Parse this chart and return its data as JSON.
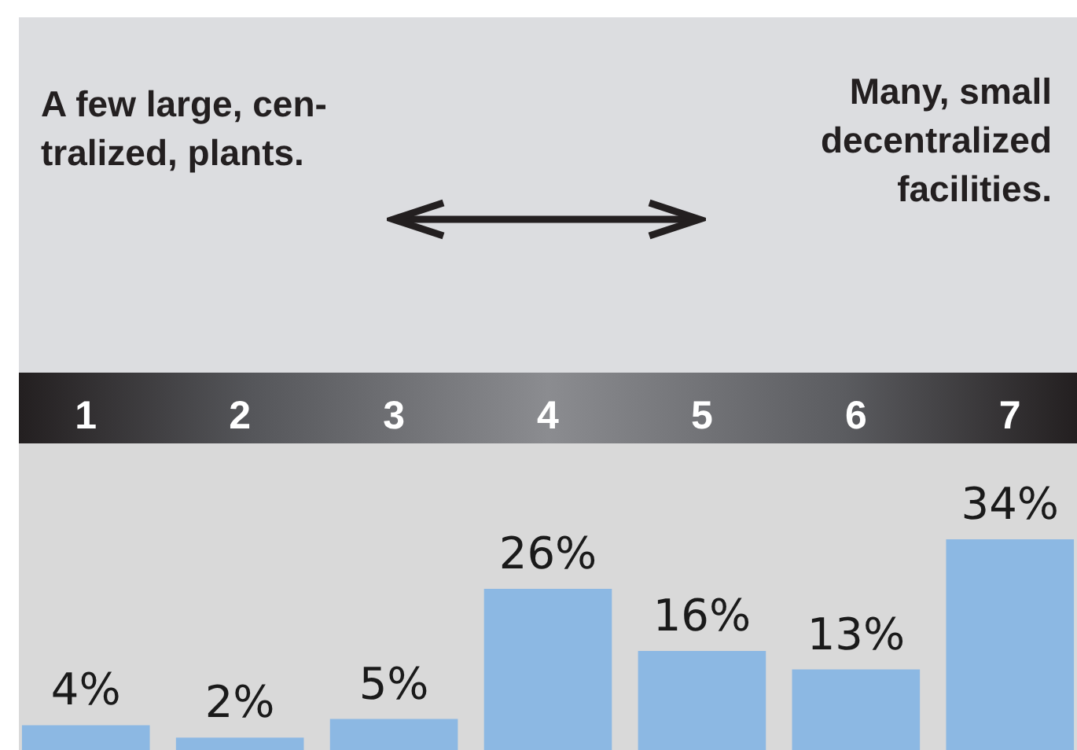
{
  "chart_data": {
    "type": "bar",
    "categories": [
      "1",
      "2",
      "3",
      "4",
      "5",
      "6",
      "7"
    ],
    "values": [
      4,
      2,
      5,
      26,
      16,
      13,
      34
    ],
    "color": "#8cb8e3",
    "value_labels": [
      "4%",
      "2%",
      "5%",
      "26%",
      "16%",
      "13%",
      "34%"
    ],
    "annotations": [
      "A few large, cen-\ntralized, plants.",
      "Many, small\ndecentralized\nfacilities."
    ]
  }
}
